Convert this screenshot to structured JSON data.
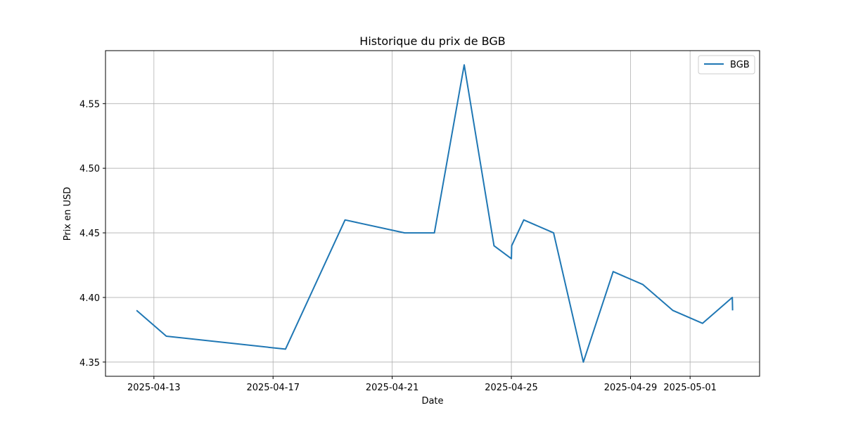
{
  "chart_data": {
    "type": "line",
    "title": "Historique du prix de BGB",
    "xlabel": "Date",
    "ylabel": "Prix en USD",
    "x_ticks": [
      "2025-04-13",
      "2025-04-17",
      "2025-04-21",
      "2025-04-25",
      "2025-04-29",
      "2025-05-01"
    ],
    "y_ticks": [
      4.35,
      4.4,
      4.45,
      4.5,
      4.55
    ],
    "y_tick_labels": [
      "4.35",
      "4.40",
      "4.45",
      "4.50",
      "4.55"
    ],
    "xlim": [
      "2025-04-11T09:00",
      "2025-05-03T08:00"
    ],
    "ylim": [
      4.339,
      4.591
    ],
    "grid": true,
    "legend_position": "top-right",
    "series": [
      {
        "name": "BGB",
        "color": "#1f77b4",
        "x": [
          "2025-04-12T10:00",
          "2025-04-13T10:00",
          "2025-04-17T10:00",
          "2025-04-19T10:00",
          "2025-04-21T10:00",
          "2025-04-22T10:00",
          "2025-04-23T10:00",
          "2025-04-24T10:00",
          "2025-04-25T00:00",
          "2025-04-25T00:15",
          "2025-04-25T10:00",
          "2025-04-26T10:00",
          "2025-04-27T10:00",
          "2025-04-28T10:00",
          "2025-04-29T10:00",
          "2025-04-30T10:00",
          "2025-05-01T10:00",
          "2025-05-02T10:00",
          "2025-05-02T10:15"
        ],
        "values": [
          4.39,
          4.37,
          4.36,
          4.46,
          4.45,
          4.45,
          4.58,
          4.44,
          4.43,
          4.44,
          4.46,
          4.45,
          4.35,
          4.42,
          4.41,
          4.39,
          4.38,
          4.4,
          4.39
        ]
      }
    ]
  }
}
